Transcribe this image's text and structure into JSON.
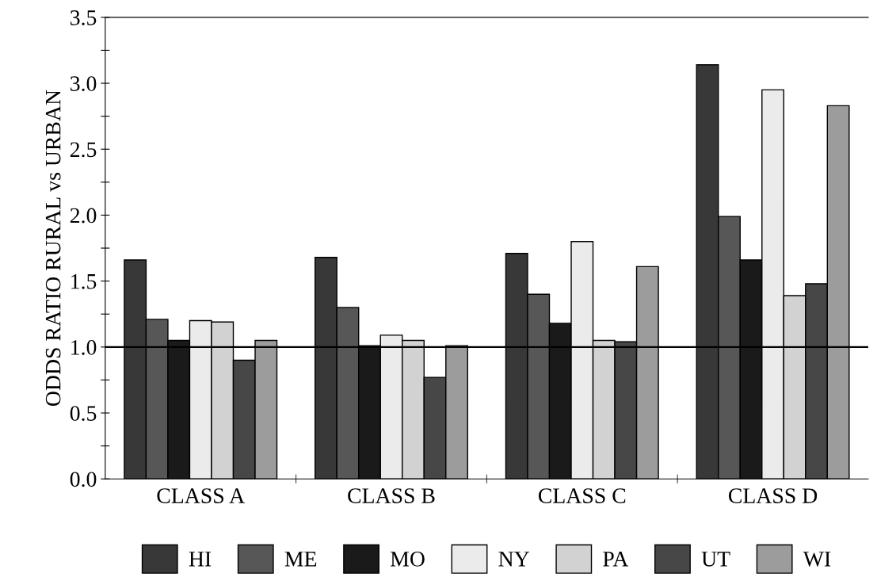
{
  "chart_data": {
    "type": "bar",
    "ylabel": "ODDS RATIO RURAL vs URBAN",
    "categories": [
      "CLASS A",
      "CLASS B",
      "CLASS C",
      "CLASS D"
    ],
    "series": [
      {
        "name": "HI",
        "color": "#383838",
        "values": [
          1.66,
          1.68,
          1.71,
          3.14
        ]
      },
      {
        "name": "ME",
        "color": "#575757",
        "values": [
          1.21,
          1.3,
          1.4,
          1.99
        ]
      },
      {
        "name": "MO",
        "color": "#1a1a1a",
        "values": [
          1.05,
          1.01,
          1.18,
          1.66
        ]
      },
      {
        "name": "NY",
        "color": "#ebebeb",
        "values": [
          1.2,
          1.09,
          1.8,
          2.95
        ]
      },
      {
        "name": "PA",
        "color": "#d2d2d2",
        "values": [
          1.19,
          1.05,
          1.05,
          1.39
        ]
      },
      {
        "name": "UT",
        "color": "#474747",
        "values": [
          0.9,
          0.77,
          1.04,
          1.48
        ]
      },
      {
        "name": "WI",
        "color": "#9c9c9c",
        "values": [
          1.05,
          1.01,
          1.61,
          2.83
        ]
      }
    ],
    "ylim": [
      0,
      3.5
    ],
    "yticks": [
      "0.0",
      {
        "value": 0.25,
        "label": null
      },
      {
        "value": 0.5,
        "label": "0.5"
      },
      {
        "value": 0.75,
        "label": null
      },
      {
        "value": 1.0,
        "label": "1.0"
      },
      {
        "value": 1.25,
        "label": null
      },
      {
        "value": 1.5,
        "label": "1.5"
      },
      {
        "value": 1.75,
        "label": null
      },
      {
        "value": 2.0,
        "label": "2.0"
      },
      {
        "value": 2.25,
        "label": null
      },
      {
        "value": 2.5,
        "label": "2.5"
      },
      {
        "value": 2.75,
        "label": null
      },
      {
        "value": 3.0,
        "label": "3.0"
      },
      {
        "value": 3.25,
        "label": null
      },
      {
        "value": 3.5,
        "label": "3.5"
      }
    ],
    "ref_lines": [
      {
        "axis": "y",
        "value": 1.0,
        "color": "#000000"
      }
    ],
    "legend": "bottom",
    "grid": false
  }
}
